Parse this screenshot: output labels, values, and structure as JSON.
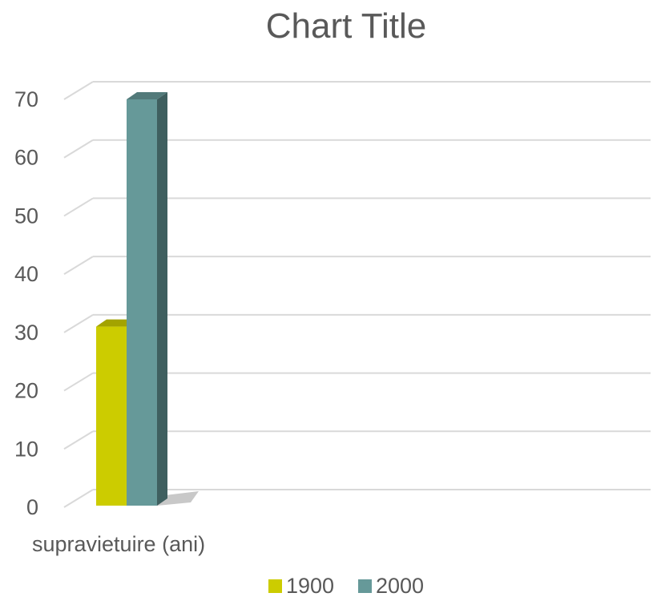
{
  "chart_data": {
    "type": "bar",
    "title": "Chart Title",
    "categories": [
      "supravietuire (ani)"
    ],
    "series": [
      {
        "name": "1900",
        "values": [
          31
        ],
        "color": "#cccc00"
      },
      {
        "name": "2000",
        "values": [
          70
        ],
        "color": "#669999"
      }
    ],
    "xlabel": "",
    "ylabel": "",
    "ylim": [
      0,
      70
    ],
    "yticks": [
      0,
      10,
      20,
      30,
      40,
      50,
      60,
      70
    ],
    "grid": true,
    "legend_position": "bottom",
    "style": "3d-clustered-column"
  }
}
